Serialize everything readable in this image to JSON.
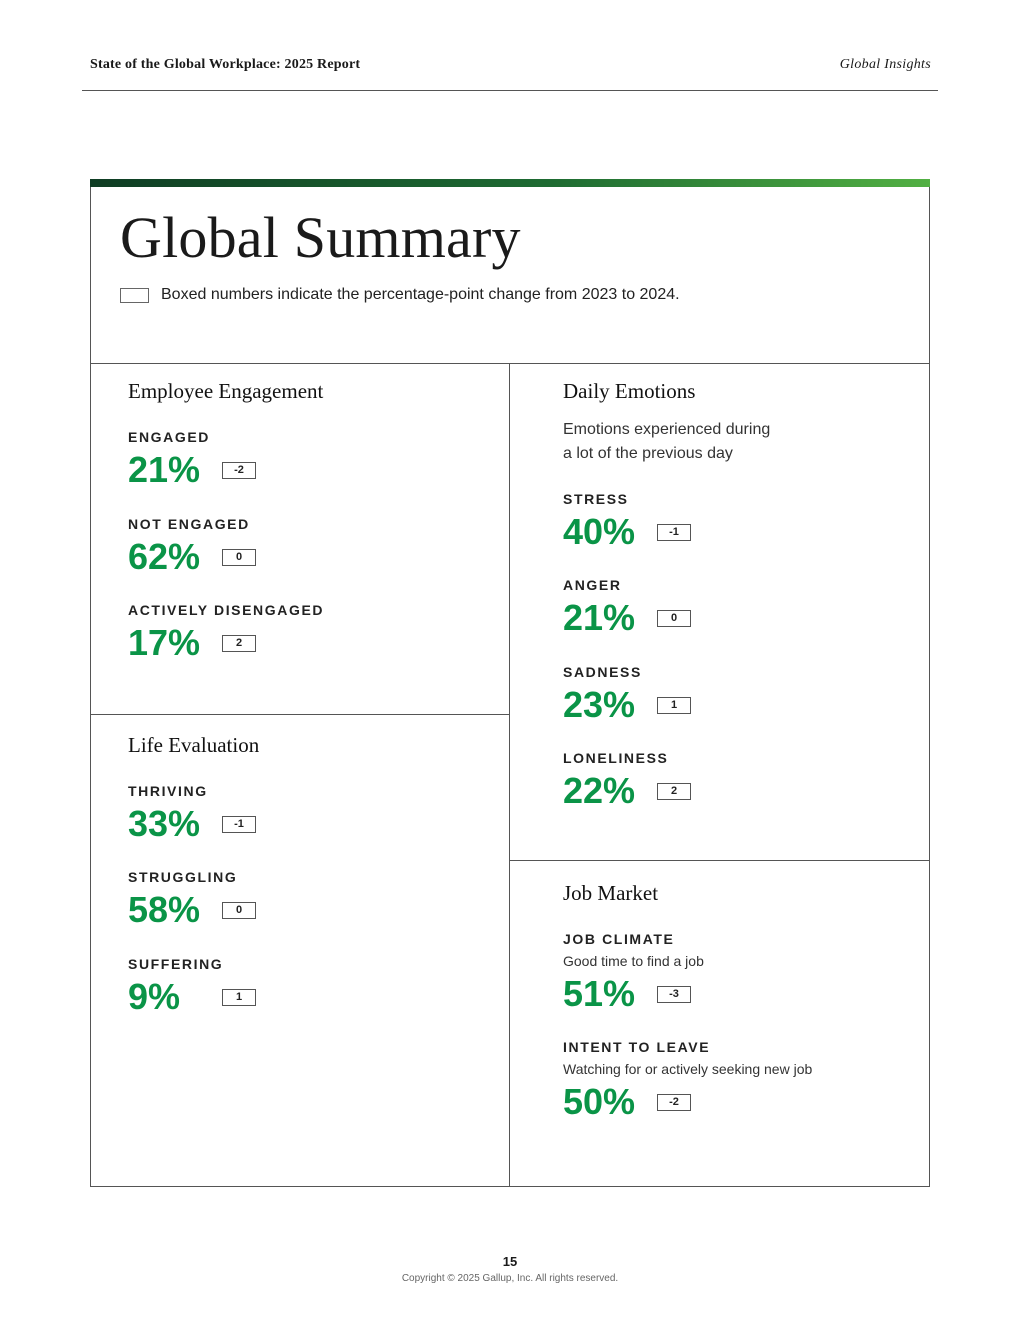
{
  "header": {
    "report_title": "State of the Global Workplace: 2025 Report",
    "section": "Global Insights"
  },
  "summary": {
    "title": "Global Summary",
    "legend_text": "Boxed numbers indicate the percentage-point change from 2023 to 2024."
  },
  "employee_engagement": {
    "title": "Employee Engagement",
    "metrics": [
      {
        "label": "ENGAGED",
        "value": "21%",
        "change": "-2"
      },
      {
        "label": "NOT ENGAGED",
        "value": "62%",
        "change": "0"
      },
      {
        "label": "ACTIVELY DISENGAGED",
        "value": "17%",
        "change": "2"
      }
    ]
  },
  "life_evaluation": {
    "title": "Life Evaluation",
    "metrics": [
      {
        "label": "THRIVING",
        "value": "33%",
        "change": "-1"
      },
      {
        "label": "STRUGGLING",
        "value": "58%",
        "change": "0"
      },
      {
        "label": "SUFFERING",
        "value": "9%",
        "change": "1"
      }
    ]
  },
  "daily_emotions": {
    "title": "Daily Emotions",
    "subtitle_line1": "Emotions experienced during",
    "subtitle_line2": "a lot of the previous day",
    "metrics": [
      {
        "label": "STRESS",
        "value": "40%",
        "change": "-1"
      },
      {
        "label": "ANGER",
        "value": "21%",
        "change": "0"
      },
      {
        "label": "SADNESS",
        "value": "23%",
        "change": "1"
      },
      {
        "label": "LONELINESS",
        "value": "22%",
        "change": "2"
      }
    ]
  },
  "job_market": {
    "title": "Job Market",
    "metrics": [
      {
        "label": "JOB CLIMATE",
        "note": "Good time to find a job",
        "value": "51%",
        "change": "-3"
      },
      {
        "label": "INTENT TO LEAVE",
        "note": "Watching for or actively seeking new job",
        "value": "50%",
        "change": "-2"
      }
    ]
  },
  "footer": {
    "page_number": "15",
    "copyright": "Copyright © 2025 Gallup, Inc. All rights reserved."
  },
  "colors": {
    "accent_green": "#0a9447",
    "bar_dark": "#0f3d24",
    "bar_light": "#52b043"
  }
}
